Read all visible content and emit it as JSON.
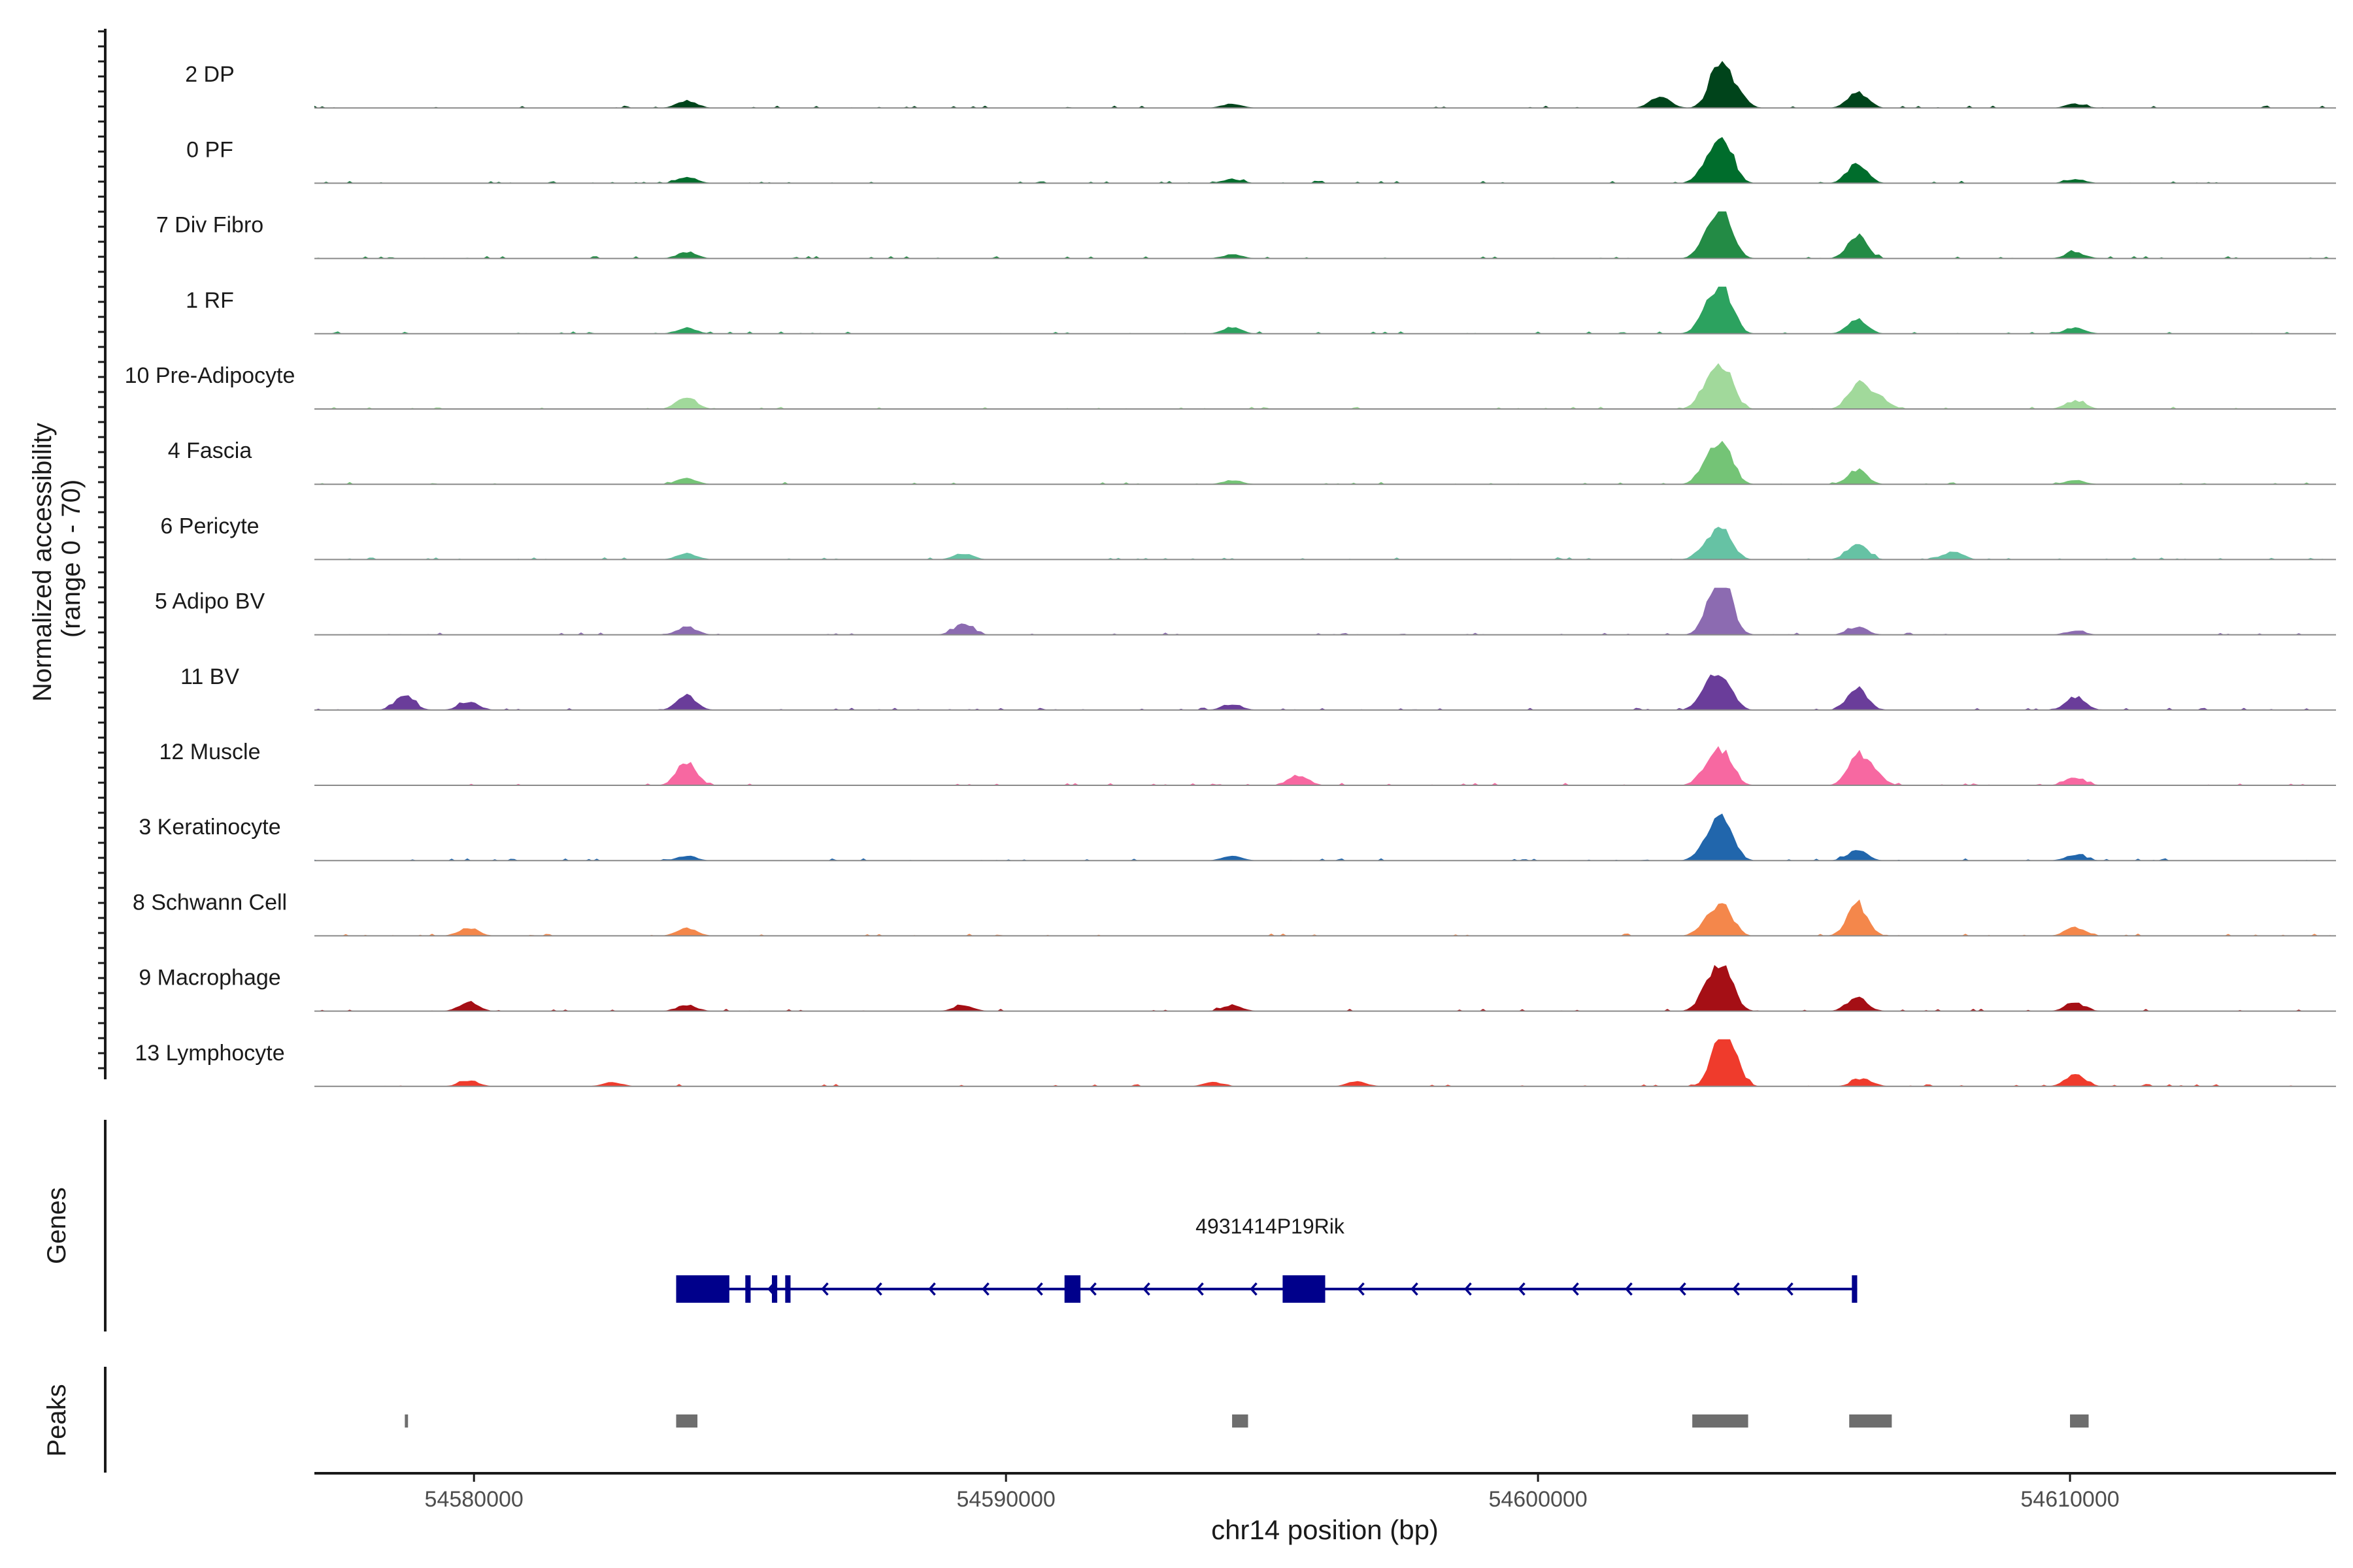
{
  "chart_data": {
    "type": "area",
    "genome_region": {
      "chromosome": "chr14",
      "start": 54577000,
      "end": 54615000
    },
    "y_axis_label_line1": "Normalized accessibility",
    "y_axis_label_line2": "(range 0 - 70)",
    "y_range": [
      0,
      70
    ],
    "x_axis_label": "chr14 position (bp)",
    "x_ticks": [
      54580000,
      54590000,
      54600000,
      54610000
    ],
    "x_tick_labels": [
      "54580000",
      "54590000",
      "54600000",
      "54610000"
    ],
    "tracks": [
      {
        "name": "2 DP",
        "color": "#00441b",
        "peaks": [
          [
            54584000,
            0.18
          ],
          [
            54594250,
            0.1
          ],
          [
            54602300,
            0.3
          ],
          [
            54603400,
            1.0
          ],
          [
            54603700,
            0.4
          ],
          [
            54606000,
            0.4
          ],
          [
            54610100,
            0.1
          ]
        ]
      },
      {
        "name": "0 PF",
        "color": "#006d2c",
        "peaks": [
          [
            54584000,
            0.15
          ],
          [
            54594250,
            0.1
          ],
          [
            54603200,
            0.45
          ],
          [
            54603500,
            1.0
          ],
          [
            54606000,
            0.5
          ],
          [
            54610100,
            0.1
          ]
        ]
      },
      {
        "name": "7 Div Fibro",
        "color": "#238b45",
        "peaks": [
          [
            54584000,
            0.15
          ],
          [
            54594250,
            0.1
          ],
          [
            54603200,
            0.5
          ],
          [
            54603500,
            1.0
          ],
          [
            54606000,
            0.55
          ],
          [
            54610100,
            0.15
          ]
        ]
      },
      {
        "name": "1 RF",
        "color": "#2ca25f",
        "peaks": [
          [
            54584000,
            0.15
          ],
          [
            54594250,
            0.15
          ],
          [
            54603200,
            0.55
          ],
          [
            54603500,
            1.0
          ],
          [
            54606000,
            0.35
          ],
          [
            54610100,
            0.15
          ]
        ]
      },
      {
        "name": "10 Pre-Adipocyte",
        "color": "#a1d99b",
        "peaks": [
          [
            54584000,
            0.3
          ],
          [
            54603200,
            0.55
          ],
          [
            54603500,
            0.9
          ],
          [
            54606000,
            0.6
          ],
          [
            54606400,
            0.3
          ],
          [
            54610100,
            0.2
          ]
        ]
      },
      {
        "name": "4 Fascia",
        "color": "#74c476",
        "peaks": [
          [
            54584000,
            0.15
          ],
          [
            54594250,
            0.1
          ],
          [
            54603200,
            0.5
          ],
          [
            54603500,
            0.9
          ],
          [
            54606000,
            0.35
          ],
          [
            54610100,
            0.1
          ]
        ]
      },
      {
        "name": "6 Pericyte",
        "color": "#66c2a4",
        "peaks": [
          [
            54584000,
            0.15
          ],
          [
            54589200,
            0.15
          ],
          [
            54603200,
            0.4
          ],
          [
            54603500,
            0.6
          ],
          [
            54606000,
            0.4
          ],
          [
            54607800,
            0.2
          ]
        ]
      },
      {
        "name": "5 Adipo BV",
        "color": "#8c6bb1",
        "peaks": [
          [
            54584000,
            0.2
          ],
          [
            54589200,
            0.25
          ],
          [
            54603300,
            0.7
          ],
          [
            54603500,
            1.0
          ],
          [
            54606000,
            0.2
          ],
          [
            54610100,
            0.1
          ]
        ]
      },
      {
        "name": "11 BV",
        "color": "#6a3d9a",
        "peaks": [
          [
            54578700,
            0.35
          ],
          [
            54579900,
            0.2
          ],
          [
            54584000,
            0.35
          ],
          [
            54594250,
            0.15
          ],
          [
            54603200,
            0.55
          ],
          [
            54603500,
            0.7
          ],
          [
            54606000,
            0.55
          ],
          [
            54610100,
            0.3
          ]
        ]
      },
      {
        "name": "12 Muscle",
        "color": "#f768a1",
        "peaks": [
          [
            54584000,
            0.55
          ],
          [
            54595500,
            0.25
          ],
          [
            54603200,
            0.4
          ],
          [
            54603500,
            0.75
          ],
          [
            54606000,
            0.65
          ],
          [
            54606300,
            0.3
          ],
          [
            54610100,
            0.2
          ]
        ]
      },
      {
        "name": "3 Keratinocyte",
        "color": "#2166ac",
        "peaks": [
          [
            54584000,
            0.12
          ],
          [
            54594250,
            0.12
          ],
          [
            54603200,
            0.45
          ],
          [
            54603500,
            1.0
          ],
          [
            54606000,
            0.25
          ],
          [
            54610100,
            0.15
          ]
        ]
      },
      {
        "name": "8 Schwann Cell",
        "color": "#f4874b",
        "peaks": [
          [
            54579900,
            0.2
          ],
          [
            54584000,
            0.2
          ],
          [
            54603200,
            0.35
          ],
          [
            54603500,
            0.65
          ],
          [
            54606000,
            0.8
          ],
          [
            54610100,
            0.2
          ]
        ]
      },
      {
        "name": "9 Macrophage",
        "color": "#a50f15",
        "peaks": [
          [
            54579900,
            0.2
          ],
          [
            54584000,
            0.15
          ],
          [
            54589200,
            0.15
          ],
          [
            54594250,
            0.15
          ],
          [
            54603200,
            0.5
          ],
          [
            54603500,
            1.0
          ],
          [
            54606000,
            0.35
          ],
          [
            54610100,
            0.2
          ]
        ]
      },
      {
        "name": "13 Lymphocyte",
        "color": "#ef3b2c",
        "peaks": [
          [
            54579900,
            0.15
          ],
          [
            54582600,
            0.1
          ],
          [
            54593900,
            0.1
          ],
          [
            54596600,
            0.12
          ],
          [
            54603400,
            0.75
          ],
          [
            54603600,
            0.85
          ],
          [
            54606100,
            0.2
          ],
          [
            54610100,
            0.3
          ]
        ]
      }
    ],
    "genes_label": "Genes",
    "gene": {
      "name": "4931414P19Rik",
      "start": 54583800,
      "end": 54606000,
      "strand": "-",
      "color": "#00008b",
      "exons": [
        [
          54583800,
          54584800
        ],
        [
          54585100,
          54585200
        ],
        [
          54585600,
          54585700
        ],
        [
          54585850,
          54585950
        ],
        [
          54591100,
          54591400
        ],
        [
          54595200,
          54596000
        ],
        [
          54605900,
          54606000
        ]
      ]
    },
    "peaks_label": "Peaks",
    "peak_color": "#6e6e6e",
    "peak_regions": [
      [
        54578700,
        54578760
      ],
      [
        54583800,
        54584200
      ],
      [
        54594250,
        54594550
      ],
      [
        54602900,
        54603950
      ],
      [
        54605850,
        54606650
      ],
      [
        54610000,
        54610350
      ]
    ]
  }
}
